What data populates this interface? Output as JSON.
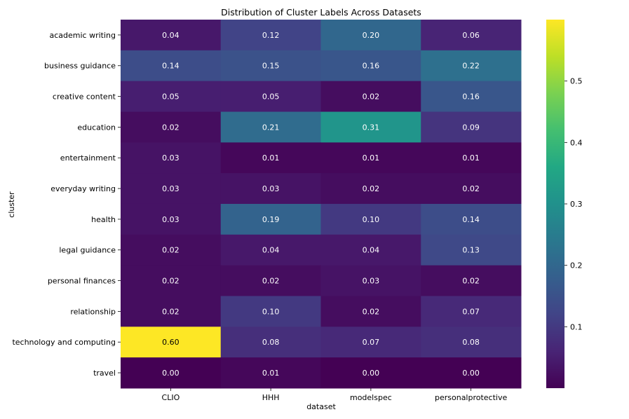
{
  "chart_data": {
    "type": "heatmap",
    "title": "Distribution of Cluster Labels Across Datasets",
    "xlabel": "dataset",
    "ylabel": "cluster",
    "columns": [
      "CLIO",
      "HHH",
      "modelspec",
      "personalprotective"
    ],
    "rows": [
      "academic writing",
      "business guidance",
      "creative content",
      "education",
      "entertainment",
      "everyday writing",
      "health",
      "legal guidance",
      "personal finances",
      "relationship",
      "technology and computing",
      "travel"
    ],
    "values": [
      [
        0.04,
        0.12,
        0.2,
        0.06
      ],
      [
        0.14,
        0.15,
        0.16,
        0.22
      ],
      [
        0.05,
        0.05,
        0.02,
        0.16
      ],
      [
        0.02,
        0.21,
        0.31,
        0.09
      ],
      [
        0.03,
        0.01,
        0.01,
        0.01
      ],
      [
        0.03,
        0.03,
        0.02,
        0.02
      ],
      [
        0.03,
        0.19,
        0.1,
        0.14
      ],
      [
        0.02,
        0.04,
        0.04,
        0.13
      ],
      [
        0.02,
        0.02,
        0.03,
        0.02
      ],
      [
        0.02,
        0.1,
        0.02,
        0.07
      ],
      [
        0.6,
        0.08,
        0.07,
        0.08
      ],
      [
        0.0,
        0.01,
        0.0,
        0.0
      ]
    ],
    "value_labels": [
      [
        "0.04",
        "0.12",
        "0.20",
        "0.06"
      ],
      [
        "0.14",
        "0.15",
        "0.16",
        "0.22"
      ],
      [
        "0.05",
        "0.05",
        "0.02",
        "0.16"
      ],
      [
        "0.02",
        "0.21",
        "0.31",
        "0.09"
      ],
      [
        "0.03",
        "0.01",
        "0.01",
        "0.01"
      ],
      [
        "0.03",
        "0.03",
        "0.02",
        "0.02"
      ],
      [
        "0.03",
        "0.19",
        "0.10",
        "0.14"
      ],
      [
        "0.02",
        "0.04",
        "0.04",
        "0.13"
      ],
      [
        "0.02",
        "0.02",
        "0.03",
        "0.02"
      ],
      [
        "0.02",
        "0.10",
        "0.02",
        "0.07"
      ],
      [
        "0.60",
        "0.08",
        "0.07",
        "0.08"
      ],
      [
        "0.00",
        "0.01",
        "0.00",
        "0.00"
      ]
    ],
    "colormap": "viridis",
    "vmin": 0.0,
    "vmax": 0.6,
    "colorbar_ticks": [
      0.1,
      0.2,
      0.3,
      0.4,
      0.5
    ],
    "colorbar_tick_labels": [
      "0.1",
      "0.2",
      "0.3",
      "0.4",
      "0.5"
    ]
  }
}
